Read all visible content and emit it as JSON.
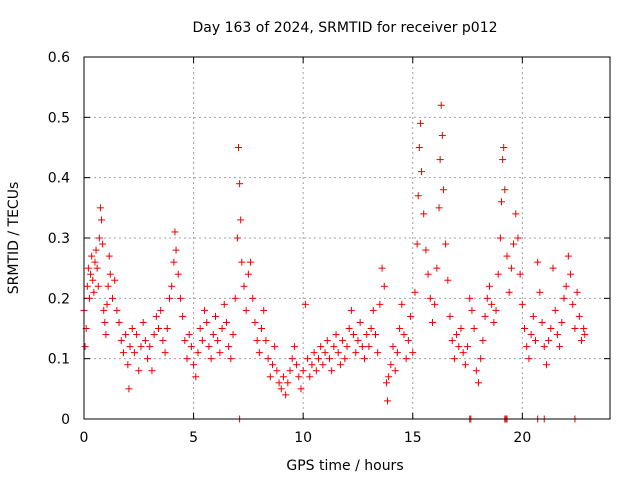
{
  "chart_data": {
    "type": "scatter",
    "title": "Day 163 of 2024, SRMTID for receiver p012",
    "xlabel": "GPS time / hours",
    "ylabel": "SRMTID / TECUs",
    "xlim": [
      0,
      24
    ],
    "ylim": [
      0,
      0.6
    ],
    "xticks": [
      0,
      5,
      10,
      15,
      20
    ],
    "yticks": [
      0,
      0.1,
      0.2,
      0.3,
      0.4,
      0.5,
      0.6
    ],
    "xtick_labels": [
      "0",
      "5",
      "10",
      "15",
      "20"
    ],
    "ytick_labels": [
      "0",
      "0.1",
      "0.2",
      "0.3",
      "0.4",
      "0.5",
      "0.6"
    ],
    "grid": true,
    "marker": "+",
    "color": "#ee0000",
    "series": [
      {
        "name": "SRMTID",
        "points": [
          [
            0.0,
            0.18
          ],
          [
            0.05,
            0.12
          ],
          [
            0.1,
            0.15
          ],
          [
            0.15,
            0.22
          ],
          [
            0.2,
            0.25
          ],
          [
            0.25,
            0.2
          ],
          [
            0.3,
            0.24
          ],
          [
            0.35,
            0.27
          ],
          [
            0.4,
            0.23
          ],
          [
            0.45,
            0.21
          ],
          [
            0.5,
            0.26
          ],
          [
            0.55,
            0.28
          ],
          [
            0.6,
            0.25
          ],
          [
            0.65,
            0.22
          ],
          [
            0.7,
            0.3
          ],
          [
            0.75,
            0.35
          ],
          [
            0.8,
            0.33
          ],
          [
            0.85,
            0.29
          ],
          [
            0.9,
            0.18
          ],
          [
            0.95,
            0.16
          ],
          [
            1.0,
            0.14
          ],
          [
            1.05,
            0.19
          ],
          [
            1.1,
            0.22
          ],
          [
            1.15,
            0.27
          ],
          [
            1.2,
            0.24
          ],
          [
            1.3,
            0.2
          ],
          [
            1.4,
            0.23
          ],
          [
            1.5,
            0.18
          ],
          [
            1.6,
            0.16
          ],
          [
            1.7,
            0.13
          ],
          [
            1.8,
            0.11
          ],
          [
            1.9,
            0.14
          ],
          [
            2.0,
            0.09
          ],
          [
            2.05,
            0.05
          ],
          [
            2.1,
            0.12
          ],
          [
            2.2,
            0.15
          ],
          [
            2.3,
            0.11
          ],
          [
            2.4,
            0.14
          ],
          [
            2.5,
            0.08
          ],
          [
            2.6,
            0.12
          ],
          [
            2.7,
            0.16
          ],
          [
            2.8,
            0.13
          ],
          [
            2.9,
            0.1
          ],
          [
            3.0,
            0.12
          ],
          [
            3.1,
            0.08
          ],
          [
            3.2,
            0.14
          ],
          [
            3.3,
            0.17
          ],
          [
            3.4,
            0.15
          ],
          [
            3.5,
            0.18
          ],
          [
            3.6,
            0.13
          ],
          [
            3.7,
            0.11
          ],
          [
            3.8,
            0.15
          ],
          [
            3.9,
            0.2
          ],
          [
            4.0,
            0.22
          ],
          [
            4.1,
            0.26
          ],
          [
            4.15,
            0.31
          ],
          [
            4.2,
            0.28
          ],
          [
            4.3,
            0.24
          ],
          [
            4.4,
            0.2
          ],
          [
            4.5,
            0.17
          ],
          [
            4.6,
            0.13
          ],
          [
            4.7,
            0.1
          ],
          [
            4.8,
            0.14
          ],
          [
            4.9,
            0.12
          ],
          [
            5.0,
            0.09
          ],
          [
            5.1,
            0.07
          ],
          [
            5.2,
            0.11
          ],
          [
            5.3,
            0.15
          ],
          [
            5.4,
            0.13
          ],
          [
            5.5,
            0.18
          ],
          [
            5.6,
            0.16
          ],
          [
            5.7,
            0.12
          ],
          [
            5.8,
            0.1
          ],
          [
            5.9,
            0.14
          ],
          [
            6.0,
            0.17
          ],
          [
            6.1,
            0.13
          ],
          [
            6.2,
            0.11
          ],
          [
            6.3,
            0.15
          ],
          [
            6.4,
            0.19
          ],
          [
            6.5,
            0.16
          ],
          [
            6.6,
            0.12
          ],
          [
            6.7,
            0.1
          ],
          [
            6.8,
            0.14
          ],
          [
            6.9,
            0.2
          ],
          [
            7.0,
            0.3
          ],
          [
            7.05,
            0.45
          ],
          [
            7.1,
            0.39
          ],
          [
            7.15,
            0.33
          ],
          [
            7.2,
            0.26
          ],
          [
            7.3,
            0.22
          ],
          [
            7.4,
            0.18
          ],
          [
            7.5,
            0.24
          ],
          [
            7.6,
            0.26
          ],
          [
            7.7,
            0.2
          ],
          [
            7.8,
            0.16
          ],
          [
            7.9,
            0.13
          ],
          [
            8.0,
            0.11
          ],
          [
            8.1,
            0.15
          ],
          [
            8.2,
            0.18
          ],
          [
            8.3,
            0.13
          ],
          [
            8.4,
            0.1
          ],
          [
            8.5,
            0.07
          ],
          [
            8.6,
            0.09
          ],
          [
            8.7,
            0.12
          ],
          [
            8.8,
            0.08
          ],
          [
            8.9,
            0.06
          ],
          [
            9.0,
            0.05
          ],
          [
            9.1,
            0.07
          ],
          [
            9.2,
            0.04
          ],
          [
            9.3,
            0.06
          ],
          [
            9.4,
            0.08
          ],
          [
            9.5,
            0.1
          ],
          [
            9.6,
            0.12
          ],
          [
            9.7,
            0.09
          ],
          [
            9.8,
            0.07
          ],
          [
            9.9,
            0.05
          ],
          [
            10.0,
            0.08
          ],
          [
            10.1,
            0.19
          ],
          [
            10.2,
            0.1
          ],
          [
            10.3,
            0.07
          ],
          [
            10.4,
            0.09
          ],
          [
            10.5,
            0.11
          ],
          [
            10.6,
            0.08
          ],
          [
            10.7,
            0.1
          ],
          [
            10.8,
            0.12
          ],
          [
            10.9,
            0.09
          ],
          [
            11.0,
            0.11
          ],
          [
            11.1,
            0.13
          ],
          [
            11.2,
            0.1
          ],
          [
            11.3,
            0.08
          ],
          [
            11.4,
            0.12
          ],
          [
            11.5,
            0.14
          ],
          [
            11.6,
            0.11
          ],
          [
            11.7,
            0.09
          ],
          [
            11.8,
            0.13
          ],
          [
            11.9,
            0.1
          ],
          [
            12.0,
            0.12
          ],
          [
            12.1,
            0.15
          ],
          [
            12.2,
            0.18
          ],
          [
            12.3,
            0.14
          ],
          [
            12.4,
            0.11
          ],
          [
            12.5,
            0.13
          ],
          [
            12.6,
            0.16
          ],
          [
            12.7,
            0.12
          ],
          [
            12.8,
            0.1
          ],
          [
            12.9,
            0.14
          ],
          [
            13.0,
            0.12
          ],
          [
            13.1,
            0.15
          ],
          [
            13.2,
            0.18
          ],
          [
            13.3,
            0.14
          ],
          [
            13.4,
            0.11
          ],
          [
            13.5,
            0.19
          ],
          [
            13.6,
            0.25
          ],
          [
            13.7,
            0.22
          ],
          [
            13.8,
            0.06
          ],
          [
            13.85,
            0.03
          ],
          [
            13.9,
            0.07
          ],
          [
            14.0,
            0.09
          ],
          [
            14.1,
            0.12
          ],
          [
            14.2,
            0.08
          ],
          [
            14.3,
            0.11
          ],
          [
            14.4,
            0.15
          ],
          [
            14.5,
            0.19
          ],
          [
            14.6,
            0.14
          ],
          [
            14.7,
            0.1
          ],
          [
            14.8,
            0.13
          ],
          [
            14.9,
            0.17
          ],
          [
            15.0,
            0.11
          ],
          [
            15.1,
            0.21
          ],
          [
            15.2,
            0.29
          ],
          [
            15.25,
            0.37
          ],
          [
            15.3,
            0.45
          ],
          [
            15.35,
            0.49
          ],
          [
            15.4,
            0.41
          ],
          [
            15.5,
            0.34
          ],
          [
            15.6,
            0.28
          ],
          [
            15.7,
            0.24
          ],
          [
            15.8,
            0.2
          ],
          [
            15.9,
            0.16
          ],
          [
            16.0,
            0.19
          ],
          [
            16.1,
            0.25
          ],
          [
            16.2,
            0.35
          ],
          [
            16.25,
            0.43
          ],
          [
            16.3,
            0.52
          ],
          [
            16.35,
            0.47
          ],
          [
            16.4,
            0.38
          ],
          [
            16.5,
            0.29
          ],
          [
            16.6,
            0.23
          ],
          [
            16.7,
            0.17
          ],
          [
            16.8,
            0.13
          ],
          [
            16.9,
            0.1
          ],
          [
            17.0,
            0.14
          ],
          [
            17.1,
            0.12
          ],
          [
            17.2,
            0.15
          ],
          [
            17.3,
            0.11
          ],
          [
            17.4,
            0.09
          ],
          [
            17.5,
            0.12
          ],
          [
            17.6,
            0.2
          ],
          [
            17.7,
            0.18
          ],
          [
            17.8,
            0.15
          ],
          [
            17.9,
            0.08
          ],
          [
            18.0,
            0.06
          ],
          [
            18.1,
            0.1
          ],
          [
            18.2,
            0.13
          ],
          [
            18.3,
            0.17
          ],
          [
            18.4,
            0.2
          ],
          [
            18.5,
            0.22
          ],
          [
            18.6,
            0.19
          ],
          [
            18.7,
            0.16
          ],
          [
            18.8,
            0.18
          ],
          [
            18.9,
            0.24
          ],
          [
            19.0,
            0.3
          ],
          [
            19.05,
            0.36
          ],
          [
            19.1,
            0.43
          ],
          [
            19.15,
            0.45
          ],
          [
            19.2,
            0.38
          ],
          [
            19.3,
            0.27
          ],
          [
            19.4,
            0.21
          ],
          [
            19.5,
            0.25
          ],
          [
            19.6,
            0.29
          ],
          [
            19.7,
            0.34
          ],
          [
            19.8,
            0.3
          ],
          [
            19.9,
            0.24
          ],
          [
            20.0,
            0.19
          ],
          [
            20.1,
            0.15
          ],
          [
            20.2,
            0.12
          ],
          [
            20.3,
            0.1
          ],
          [
            20.4,
            0.14
          ],
          [
            20.5,
            0.17
          ],
          [
            20.6,
            0.13
          ],
          [
            20.7,
            0.26
          ],
          [
            20.8,
            0.21
          ],
          [
            20.9,
            0.16
          ],
          [
            21.0,
            0.12
          ],
          [
            21.1,
            0.09
          ],
          [
            21.2,
            0.13
          ],
          [
            21.3,
            0.15
          ],
          [
            21.4,
            0.25
          ],
          [
            21.5,
            0.18
          ],
          [
            21.6,
            0.14
          ],
          [
            21.7,
            0.12
          ],
          [
            21.8,
            0.16
          ],
          [
            21.9,
            0.2
          ],
          [
            22.0,
            0.22
          ],
          [
            22.1,
            0.27
          ],
          [
            22.2,
            0.24
          ],
          [
            22.3,
            0.19
          ],
          [
            22.4,
            0.15
          ],
          [
            22.5,
            0.21
          ],
          [
            22.6,
            0.17
          ],
          [
            22.7,
            0.13
          ],
          [
            22.8,
            0.15
          ],
          [
            22.85,
            0.14
          ],
          [
            7.1,
            0.0
          ],
          [
            17.6,
            0.0
          ],
          [
            17.65,
            0.0
          ],
          [
            19.2,
            0.0
          ],
          [
            19.25,
            0.0
          ],
          [
            19.3,
            0.0
          ],
          [
            20.7,
            0.0
          ],
          [
            21.0,
            0.0
          ],
          [
            22.4,
            0.0
          ]
        ]
      }
    ]
  }
}
